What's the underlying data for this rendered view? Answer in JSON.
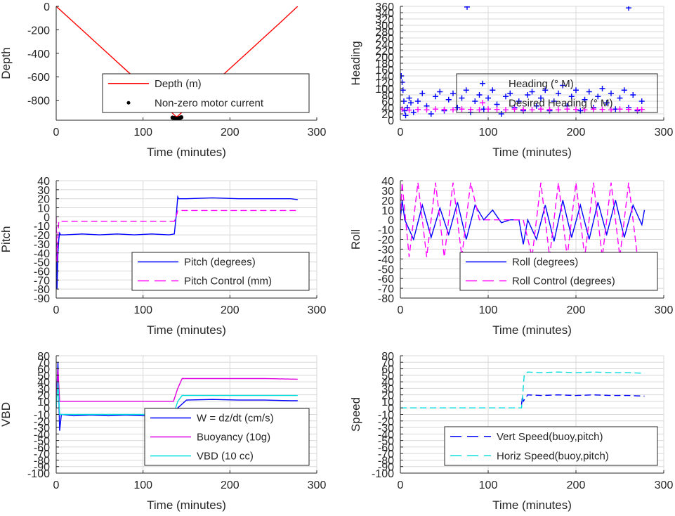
{
  "chart_data": [
    {
      "type": "line",
      "xlabel": "Time (minutes)",
      "ylabel": "Depth",
      "xlim": [
        0,
        300
      ],
      "ylim": [
        -970,
        0
      ],
      "xticks": [
        0,
        100,
        200,
        300
      ],
      "yticks": [
        0,
        -200,
        -400,
        -600,
        -800
      ],
      "grid": false,
      "legend": "bottom-right",
      "series": [
        {
          "name": "Depth (m)",
          "color": "#ff0000",
          "style": "solid",
          "x": [
            0,
            20,
            40,
            60,
            80,
            100,
            120,
            138,
            140,
            160,
            180,
            200,
            220,
            240,
            260,
            278
          ],
          "y": [
            0,
            -135,
            -270,
            -405,
            -540,
            -675,
            -810,
            -940,
            -935,
            -800,
            -665,
            -530,
            -395,
            -260,
            -125,
            0
          ]
        },
        {
          "name": "Non-zero motor current",
          "color": "#000000",
          "style": "dots",
          "x": [
            134,
            136,
            137,
            138,
            139,
            140,
            141,
            142,
            143,
            144
          ],
          "y": [
            -948,
            -952,
            -956,
            -958,
            -960,
            -958,
            -955,
            -952,
            -949,
            -945
          ]
        }
      ]
    },
    {
      "type": "scatter",
      "xlabel": "Time (minutes)",
      "ylabel": "Heading",
      "xlim": [
        0,
        300
      ],
      "ylim": [
        0,
        360
      ],
      "xticks": [
        0,
        100,
        200,
        300
      ],
      "yticks": [
        0,
        20,
        40,
        60,
        80,
        100,
        120,
        140,
        160,
        180,
        200,
        220,
        240,
        260,
        280,
        300,
        320,
        340,
        360
      ],
      "grid": true,
      "legend": "center-right",
      "series": [
        {
          "name": "Heading (° M)",
          "color": "#0000ff",
          "style": "plus",
          "x": [
            1,
            2,
            3,
            4,
            5,
            6,
            8,
            10,
            12,
            15,
            20,
            25,
            30,
            35,
            40,
            45,
            50,
            55,
            60,
            65,
            70,
            75,
            80,
            85,
            90,
            95,
            100,
            105,
            110,
            115,
            120,
            125,
            130,
            135,
            140,
            145,
            150,
            155,
            160,
            165,
            170,
            175,
            180,
            185,
            190,
            195,
            200,
            205,
            210,
            215,
            220,
            225,
            230,
            235,
            240,
            245,
            250,
            255,
            260,
            265,
            270,
            275,
            76,
            260
          ],
          "y": [
            140,
            120,
            95,
            60,
            30,
            15,
            40,
            70,
            55,
            25,
            60,
            85,
            45,
            20,
            75,
            90,
            30,
            65,
            85,
            40,
            70,
            95,
            25,
            60,
            80,
            35,
            70,
            95,
            50,
            20,
            75,
            85,
            40,
            60,
            30,
            80,
            90,
            45,
            70,
            95,
            30,
            60,
            85,
            110,
            45,
            75,
            95,
            30,
            65,
            90,
            40,
            75,
            100,
            55,
            85,
            35,
            70,
            95,
            40,
            80,
            30,
            60,
            358,
            355
          ]
        },
        {
          "name": "Desired Heading (° M)",
          "color": "#ff00ff",
          "style": "plus",
          "x": [
            2,
            10,
            20,
            30,
            40,
            50,
            60,
            70,
            80,
            90,
            100,
            110,
            120,
            130,
            140,
            150,
            160,
            170,
            180,
            190,
            200,
            210,
            220,
            230,
            240,
            250,
            260,
            270,
            275
          ],
          "y": [
            35,
            32,
            34,
            33,
            35,
            34,
            33,
            35,
            34,
            33,
            35,
            34,
            33,
            35,
            34,
            33,
            35,
            34,
            33,
            35,
            34,
            33,
            35,
            34,
            33,
            35,
            34,
            33,
            34
          ]
        }
      ]
    },
    {
      "type": "line",
      "xlabel": "Time (minutes)",
      "ylabel": "Pitch",
      "xlim": [
        0,
        300
      ],
      "ylim": [
        -90,
        40
      ],
      "xticks": [
        0,
        100,
        200,
        300
      ],
      "yticks": [
        40,
        30,
        20,
        10,
        0,
        -10,
        -20,
        -30,
        -40,
        -50,
        -60,
        -70,
        -80,
        -90
      ],
      "grid": true,
      "legend": "bottom-right",
      "series": [
        {
          "name": "Pitch (degrees)",
          "color": "#0000ff",
          "style": "solid",
          "x": [
            0,
            1,
            2,
            3,
            4,
            5,
            10,
            30,
            50,
            70,
            90,
            110,
            130,
            136,
            138,
            140,
            141,
            150,
            180,
            210,
            240,
            270,
            278
          ],
          "y": [
            -20,
            -80,
            -40,
            -25,
            -18,
            -20,
            -20,
            -19,
            -20,
            -19,
            -20,
            -19,
            -20,
            -19,
            0,
            22,
            20,
            20,
            21,
            20,
            20,
            20,
            19
          ]
        },
        {
          "name": "Pitch Control (mm)",
          "color": "#ff00ff",
          "style": "dashed",
          "x": [
            0,
            1,
            2,
            3,
            5,
            10,
            30,
            60,
            90,
            120,
            136,
            138,
            140,
            150,
            180,
            210,
            240,
            270,
            278
          ],
          "y": [
            0,
            -50,
            -20,
            -5,
            -5,
            -5,
            -5,
            -5,
            -5,
            -5,
            -5,
            0,
            7,
            7,
            7,
            7,
            7,
            7,
            7
          ]
        }
      ]
    },
    {
      "type": "line",
      "xlabel": "Time (minutes)",
      "ylabel": "Roll",
      "xlim": [
        0,
        300
      ],
      "ylim": [
        -80,
        40
      ],
      "xticks": [
        0,
        100,
        200,
        300
      ],
      "yticks": [
        40,
        30,
        20,
        10,
        0,
        -10,
        -20,
        -30,
        -40,
        -50,
        -60,
        -70,
        -80
      ],
      "grid": true,
      "legend": "bottom-right",
      "series": [
        {
          "name": "Roll (degrees)",
          "color": "#0000ff",
          "style": "solid",
          "x": [
            0,
            2,
            5,
            15,
            25,
            35,
            45,
            55,
            65,
            75,
            85,
            95,
            105,
            115,
            125,
            135,
            140,
            145,
            155,
            165,
            175,
            185,
            195,
            205,
            215,
            225,
            235,
            245,
            255,
            265,
            275,
            278
          ],
          "y": [
            0,
            20,
            0,
            -20,
            15,
            -18,
            12,
            -15,
            18,
            -20,
            15,
            0,
            10,
            -3,
            0,
            0,
            -25,
            0,
            -20,
            15,
            -22,
            20,
            -18,
            15,
            -20,
            18,
            -15,
            20,
            -18,
            15,
            -5,
            10
          ]
        },
        {
          "name": "Roll Control (degrees)",
          "color": "#ff00ff",
          "style": "dashed",
          "x": [
            0,
            2,
            10,
            20,
            30,
            40,
            50,
            60,
            70,
            80,
            90,
            100,
            110,
            120,
            130,
            140,
            150,
            160,
            170,
            180,
            190,
            200,
            210,
            220,
            230,
            240,
            250,
            260,
            270
          ],
          "y": [
            0,
            38,
            -38,
            38,
            -38,
            38,
            -38,
            38,
            -38,
            38,
            0,
            0,
            0,
            0,
            0,
            0,
            -38,
            38,
            -38,
            38,
            -38,
            38,
            -38,
            38,
            -38,
            38,
            -38,
            38,
            -38
          ]
        }
      ]
    },
    {
      "type": "line",
      "xlabel": "Time (minutes)",
      "ylabel": "VBD",
      "xlim": [
        0,
        300
      ],
      "ylim": [
        -100,
        80
      ],
      "xticks": [
        0,
        100,
        200,
        300
      ],
      "yticks": [
        80,
        70,
        60,
        50,
        40,
        30,
        20,
        10,
        0,
        -10,
        -20,
        -30,
        -40,
        -50,
        -60,
        -70,
        -80,
        -90,
        -100
      ],
      "grid": true,
      "legend": "bottom-right",
      "series": [
        {
          "name": "W = dz/dt (cm/s)",
          "color": "#0000ff",
          "style": "solid",
          "x": [
            0,
            2,
            4,
            6,
            20,
            40,
            60,
            80,
            100,
            120,
            136,
            140,
            150,
            180,
            210,
            240,
            270,
            278
          ],
          "y": [
            0,
            70,
            -35,
            -10,
            -12,
            -11,
            -12,
            -11,
            -12,
            -11,
            -12,
            0,
            12,
            13,
            12,
            12,
            11,
            11
          ]
        },
        {
          "name": "Buoyancy (10g)",
          "color": "#e000e0",
          "style": "solid",
          "x": [
            0,
            2,
            4,
            6,
            100,
            135,
            140,
            145,
            180,
            240,
            278
          ],
          "y": [
            0,
            60,
            10,
            10,
            10,
            10,
            30,
            45,
            45,
            45,
            44
          ]
        },
        {
          "name": "VBD (10 cc)",
          "color": "#00dddd",
          "style": "solid",
          "x": [
            0,
            2,
            4,
            6,
            100,
            135,
            140,
            145,
            180,
            240,
            278
          ],
          "y": [
            0,
            40,
            -10,
            -10,
            -10,
            -10,
            10,
            19,
            19,
            19,
            19
          ]
        }
      ]
    },
    {
      "type": "line",
      "xlabel": "Time (minutes)",
      "ylabel": "Speed",
      "xlim": [
        0,
        300
      ],
      "ylim": [
        -100,
        80
      ],
      "xticks": [
        0,
        100,
        200,
        300
      ],
      "yticks": [
        80,
        70,
        60,
        50,
        40,
        30,
        20,
        10,
        0,
        -10,
        -20,
        -30,
        -40,
        -50,
        -60,
        -70,
        -80,
        -90,
        -100
      ],
      "grid": true,
      "legend": "bottom-right",
      "series": [
        {
          "name": "Vert Speed(buoy,pitch)",
          "color": "#0000ff",
          "style": "dashed",
          "x": [
            138,
            139,
            140,
            145,
            160,
            180,
            200,
            220,
            240,
            260,
            278
          ],
          "y": [
            5,
            18,
            10,
            20,
            19,
            20,
            19,
            20,
            19,
            19,
            18
          ]
        },
        {
          "name": "Horiz Speed(buoy,pitch)",
          "color": "#00dddd",
          "style": "dashed",
          "x": [
            0,
            50,
            100,
            138,
            139,
            141,
            145,
            160,
            180,
            200,
            220,
            240,
            260,
            278
          ],
          "y": [
            0,
            0,
            0,
            0,
            15,
            50,
            55,
            54,
            55,
            54,
            55,
            54,
            54,
            53
          ]
        }
      ]
    }
  ]
}
